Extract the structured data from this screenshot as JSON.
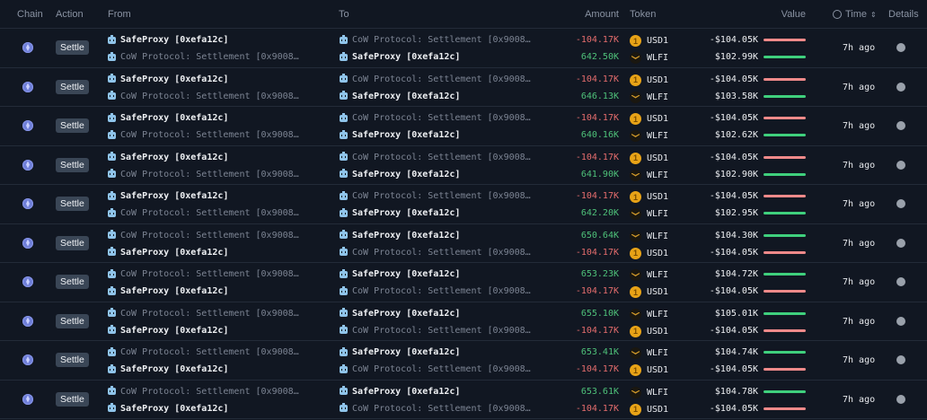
{
  "header": {
    "chain": "Chain",
    "action": "Action",
    "from": "From",
    "to": "To",
    "amount": "Amount",
    "token": "Token",
    "value": "Value",
    "time": "Time",
    "details": "Details"
  },
  "colors": {
    "negative": "#e56d6d",
    "positive": "#4fc27a",
    "bar_negative": "#f08a8a",
    "bar_positive": "#3fd07d",
    "background": "#111722"
  },
  "rows": [
    {
      "action": "Settle",
      "time": "7h ago",
      "legs": [
        {
          "from": "SafeProxy [0xefa12c]",
          "from_strong": true,
          "to": "CoW Protocol: Settlement [0x9008…",
          "to_strong": false,
          "amount": "-104.17K",
          "token": "USD1",
          "value": "-$104.05K",
          "sign": "neg"
        },
        {
          "from": "CoW Protocol: Settlement [0x9008…",
          "from_strong": false,
          "to": "SafeProxy [0xefa12c]",
          "to_strong": true,
          "amount": "642.50K",
          "token": "WLFI",
          "value": "$102.99K",
          "sign": "pos"
        }
      ]
    },
    {
      "action": "Settle",
      "time": "7h ago",
      "legs": [
        {
          "from": "SafeProxy [0xefa12c]",
          "from_strong": true,
          "to": "CoW Protocol: Settlement [0x9008…",
          "to_strong": false,
          "amount": "-104.17K",
          "token": "USD1",
          "value": "-$104.05K",
          "sign": "neg"
        },
        {
          "from": "CoW Protocol: Settlement [0x9008…",
          "from_strong": false,
          "to": "SafeProxy [0xefa12c]",
          "to_strong": true,
          "amount": "646.13K",
          "token": "WLFI",
          "value": "$103.58K",
          "sign": "pos"
        }
      ]
    },
    {
      "action": "Settle",
      "time": "7h ago",
      "legs": [
        {
          "from": "SafeProxy [0xefa12c]",
          "from_strong": true,
          "to": "CoW Protocol: Settlement [0x9008…",
          "to_strong": false,
          "amount": "-104.17K",
          "token": "USD1",
          "value": "-$104.05K",
          "sign": "neg"
        },
        {
          "from": "CoW Protocol: Settlement [0x9008…",
          "from_strong": false,
          "to": "SafeProxy [0xefa12c]",
          "to_strong": true,
          "amount": "640.16K",
          "token": "WLFI",
          "value": "$102.62K",
          "sign": "pos"
        }
      ]
    },
    {
      "action": "Settle",
      "time": "7h ago",
      "legs": [
        {
          "from": "SafeProxy [0xefa12c]",
          "from_strong": true,
          "to": "CoW Protocol: Settlement [0x9008…",
          "to_strong": false,
          "amount": "-104.17K",
          "token": "USD1",
          "value": "-$104.05K",
          "sign": "neg"
        },
        {
          "from": "CoW Protocol: Settlement [0x9008…",
          "from_strong": false,
          "to": "SafeProxy [0xefa12c]",
          "to_strong": true,
          "amount": "641.90K",
          "token": "WLFI",
          "value": "$102.90K",
          "sign": "pos"
        }
      ]
    },
    {
      "action": "Settle",
      "time": "7h ago",
      "legs": [
        {
          "from": "SafeProxy [0xefa12c]",
          "from_strong": true,
          "to": "CoW Protocol: Settlement [0x9008…",
          "to_strong": false,
          "amount": "-104.17K",
          "token": "USD1",
          "value": "-$104.05K",
          "sign": "neg"
        },
        {
          "from": "CoW Protocol: Settlement [0x9008…",
          "from_strong": false,
          "to": "SafeProxy [0xefa12c]",
          "to_strong": true,
          "amount": "642.20K",
          "token": "WLFI",
          "value": "$102.95K",
          "sign": "pos"
        }
      ]
    },
    {
      "action": "Settle",
      "time": "7h ago",
      "legs": [
        {
          "from": "CoW Protocol: Settlement [0x9008…",
          "from_strong": false,
          "to": "SafeProxy [0xefa12c]",
          "to_strong": true,
          "amount": "650.64K",
          "token": "WLFI",
          "value": "$104.30K",
          "sign": "pos"
        },
        {
          "from": "SafeProxy [0xefa12c]",
          "from_strong": true,
          "to": "CoW Protocol: Settlement [0x9008…",
          "to_strong": false,
          "amount": "-104.17K",
          "token": "USD1",
          "value": "-$104.05K",
          "sign": "neg"
        }
      ]
    },
    {
      "action": "Settle",
      "time": "7h ago",
      "legs": [
        {
          "from": "CoW Protocol: Settlement [0x9008…",
          "from_strong": false,
          "to": "SafeProxy [0xefa12c]",
          "to_strong": true,
          "amount": "653.23K",
          "token": "WLFI",
          "value": "$104.72K",
          "sign": "pos"
        },
        {
          "from": "SafeProxy [0xefa12c]",
          "from_strong": true,
          "to": "CoW Protocol: Settlement [0x9008…",
          "to_strong": false,
          "amount": "-104.17K",
          "token": "USD1",
          "value": "-$104.05K",
          "sign": "neg"
        }
      ]
    },
    {
      "action": "Settle",
      "time": "7h ago",
      "legs": [
        {
          "from": "CoW Protocol: Settlement [0x9008…",
          "from_strong": false,
          "to": "SafeProxy [0xefa12c]",
          "to_strong": true,
          "amount": "655.10K",
          "token": "WLFI",
          "value": "$105.01K",
          "sign": "pos"
        },
        {
          "from": "SafeProxy [0xefa12c]",
          "from_strong": true,
          "to": "CoW Protocol: Settlement [0x9008…",
          "to_strong": false,
          "amount": "-104.17K",
          "token": "USD1",
          "value": "-$104.05K",
          "sign": "neg"
        }
      ]
    },
    {
      "action": "Settle",
      "time": "7h ago",
      "legs": [
        {
          "from": "CoW Protocol: Settlement [0x9008…",
          "from_strong": false,
          "to": "SafeProxy [0xefa12c]",
          "to_strong": true,
          "amount": "653.41K",
          "token": "WLFI",
          "value": "$104.74K",
          "sign": "pos"
        },
        {
          "from": "SafeProxy [0xefa12c]",
          "from_strong": true,
          "to": "CoW Protocol: Settlement [0x9008…",
          "to_strong": false,
          "amount": "-104.17K",
          "token": "USD1",
          "value": "-$104.05K",
          "sign": "neg"
        }
      ]
    },
    {
      "action": "Settle",
      "time": "7h ago",
      "legs": [
        {
          "from": "CoW Protocol: Settlement [0x9008…",
          "from_strong": false,
          "to": "SafeProxy [0xefa12c]",
          "to_strong": true,
          "amount": "653.61K",
          "token": "WLFI",
          "value": "$104.78K",
          "sign": "pos"
        },
        {
          "from": "SafeProxy [0xefa12c]",
          "from_strong": true,
          "to": "CoW Protocol: Settlement [0x9008…",
          "to_strong": false,
          "amount": "-104.17K",
          "token": "USD1",
          "value": "-$104.05K",
          "sign": "neg"
        }
      ]
    }
  ]
}
